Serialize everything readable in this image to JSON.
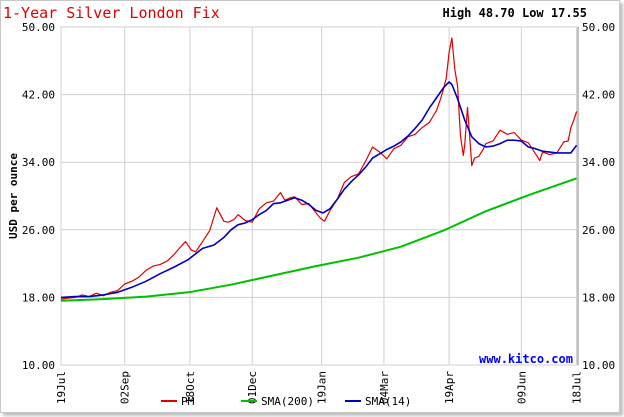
{
  "header": {
    "title": "1-Year Silver London Fix",
    "high_low": "High 48.70 Low 17.55",
    "watermark": "www.kitco.com"
  },
  "colors": {
    "title": "#e00000",
    "pm": "#e00000",
    "sma200": "#00c000",
    "sma14": "#0000c0",
    "grid": "#d0d0d0",
    "watermark": "#0000ff",
    "axis_text": "#000000"
  },
  "chart_data": {
    "type": "line",
    "ylabel": "USD per ounce",
    "ylim": [
      10,
      50
    ],
    "yticks": [
      "10.00",
      "18.00",
      "26.00",
      "34.00",
      "42.00",
      "50.00"
    ],
    "ytick_values": [
      10,
      18,
      26,
      34,
      42,
      50
    ],
    "xlim": [
      0,
      365
    ],
    "xticks": [
      {
        "label": "19Jul",
        "day": 0
      },
      {
        "label": "02Sep",
        "day": 45
      },
      {
        "label": "18Oct",
        "day": 91
      },
      {
        "label": "01Dec",
        "day": 135
      },
      {
        "label": "19Jan",
        "day": 184
      },
      {
        "label": "04Mar",
        "day": 228
      },
      {
        "label": "19Apr",
        "day": 274
      },
      {
        "label": "09Jun",
        "day": 325
      },
      {
        "label": "18Jul",
        "day": 364
      }
    ],
    "grid": true,
    "legend_position": "bottom",
    "series": [
      {
        "name": "PM",
        "color": "#e00000",
        "x": [
          0,
          5,
          10,
          15,
          20,
          25,
          30,
          35,
          40,
          45,
          50,
          55,
          60,
          65,
          70,
          75,
          80,
          85,
          88,
          92,
          95,
          100,
          105,
          110,
          115,
          118,
          122,
          125,
          130,
          135,
          140,
          145,
          150,
          155,
          158,
          162,
          165,
          170,
          175,
          180,
          183,
          186,
          190,
          195,
          200,
          205,
          210,
          215,
          220,
          225,
          230,
          235,
          240,
          245,
          250,
          255,
          260,
          265,
          268,
          270,
          272,
          274,
          276,
          278,
          280,
          282,
          284,
          285,
          287,
          290,
          292,
          295,
          298,
          300,
          305,
          310,
          315,
          320,
          325,
          330,
          335,
          338,
          340,
          345,
          350,
          355,
          358,
          360,
          362,
          364
        ],
        "values": [
          17.8,
          17.9,
          18.0,
          18.3,
          18.1,
          18.5,
          18.2,
          18.6,
          18.8,
          19.6,
          19.9,
          20.4,
          21.2,
          21.7,
          21.9,
          22.3,
          23.1,
          24.1,
          24.6,
          23.6,
          23.4,
          24.6,
          25.9,
          28.6,
          27.0,
          26.9,
          27.2,
          27.8,
          27.1,
          26.9,
          28.5,
          29.2,
          29.4,
          30.4,
          29.5,
          29.8,
          29.9,
          29.0,
          29.1,
          28.0,
          27.4,
          27.0,
          28.3,
          29.6,
          31.6,
          32.3,
          32.6,
          34.1,
          35.8,
          35.2,
          34.4,
          35.6,
          36.0,
          37.0,
          37.3,
          38.1,
          38.7,
          40.1,
          41.5,
          42.6,
          44.0,
          47.0,
          48.7,
          45.0,
          43.0,
          37.2,
          34.8,
          36.0,
          40.5,
          33.6,
          34.5,
          34.7,
          35.5,
          36.2,
          36.5,
          37.8,
          37.3,
          37.5,
          36.6,
          36.3,
          35.0,
          34.2,
          35.2,
          34.9,
          35.1,
          36.4,
          36.5,
          38.1,
          39.0,
          40.0
        ]
      },
      {
        "name": "SMA(200)",
        "color": "#00c000",
        "x": [
          0,
          30,
          60,
          90,
          120,
          150,
          180,
          210,
          240,
          270,
          300,
          330,
          364
        ],
        "values": [
          17.6,
          17.8,
          18.1,
          18.6,
          19.5,
          20.6,
          21.7,
          22.7,
          24.0,
          25.9,
          28.2,
          30.1,
          32.1
        ]
      },
      {
        "name": "SMA(14)",
        "color": "#0000c0",
        "x": [
          0,
          10,
          20,
          30,
          40,
          50,
          60,
          70,
          80,
          90,
          100,
          108,
          115,
          120,
          125,
          130,
          135,
          140,
          145,
          150,
          155,
          160,
          165,
          170,
          175,
          180,
          185,
          190,
          195,
          200,
          205,
          210,
          215,
          220,
          225,
          230,
          235,
          240,
          245,
          250,
          255,
          260,
          265,
          270,
          274,
          276,
          280,
          285,
          290,
          295,
          300,
          305,
          310,
          315,
          320,
          325,
          330,
          335,
          340,
          345,
          350,
          355,
          360,
          364
        ],
        "values": [
          18.0,
          18.1,
          18.1,
          18.3,
          18.6,
          19.2,
          19.9,
          20.8,
          21.6,
          22.5,
          23.8,
          24.2,
          25.1,
          26.0,
          26.6,
          26.8,
          27.2,
          27.8,
          28.3,
          29.1,
          29.2,
          29.5,
          29.8,
          29.5,
          29.0,
          28.3,
          28.0,
          28.5,
          29.6,
          30.8,
          31.7,
          32.5,
          33.4,
          34.5,
          35.0,
          35.5,
          35.9,
          36.4,
          37.1,
          38.0,
          39.0,
          40.4,
          41.6,
          42.8,
          43.5,
          43.2,
          41.5,
          39.0,
          37.0,
          36.2,
          35.8,
          35.9,
          36.2,
          36.6,
          36.6,
          36.5,
          35.8,
          35.6,
          35.3,
          35.2,
          35.1,
          35.1,
          35.1,
          36.0
        ]
      }
    ]
  }
}
